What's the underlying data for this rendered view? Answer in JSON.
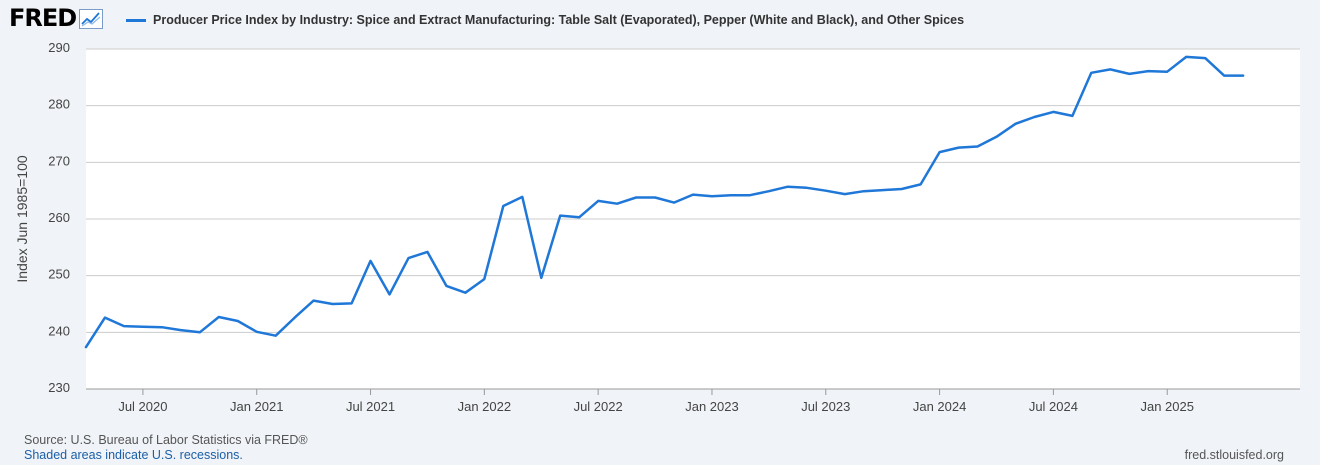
{
  "header": {
    "logo_text": "FRED",
    "series_title": "Producer Price Index by Industry: Spice and Extract Manufacturing: Table Salt (Evaporated), Pepper (White and Black), and Other Spices"
  },
  "footer": {
    "source": "Source: U.S. Bureau of Labor Statistics via FRED®",
    "recession_note": "Shaded areas indicate U.S. recessions.",
    "url": "fred.stlouisfed.org"
  },
  "colors": {
    "series": "#1f77d8",
    "plot_background": "#ffffff",
    "page_background": "#f0f3f7",
    "gridline": "#cccccc"
  },
  "chart_data": {
    "type": "line",
    "title": "Producer Price Index by Industry: Spice and Extract Manufacturing: Table Salt (Evaporated), Pepper (White and Black), and Other Spices",
    "xlabel": "",
    "ylabel": "Index Jun 1985=100",
    "ylim": [
      230,
      290
    ],
    "xlim": [
      "2020-04",
      "2025-08"
    ],
    "yticks": [
      230,
      240,
      250,
      260,
      270,
      280,
      290
    ],
    "xticks": [
      {
        "date": "2020-07",
        "label": "Jul 2020"
      },
      {
        "date": "2021-01",
        "label": "Jan 2021"
      },
      {
        "date": "2021-07",
        "label": "Jul 2021"
      },
      {
        "date": "2022-01",
        "label": "Jan 2022"
      },
      {
        "date": "2022-07",
        "label": "Jul 2022"
      },
      {
        "date": "2023-01",
        "label": "Jan 2023"
      },
      {
        "date": "2023-07",
        "label": "Jul 2023"
      },
      {
        "date": "2024-01",
        "label": "Jan 2024"
      },
      {
        "date": "2024-07",
        "label": "Jul 2024"
      },
      {
        "date": "2025-01",
        "label": "Jan 2025"
      }
    ],
    "grid": true,
    "legend": "top-left",
    "series": [
      {
        "name": "Producer Price Index by Industry: Spice and Extract Manufacturing: Table Salt (Evaporated), Pepper (White and Black), and Other Spices",
        "x": [
          "2020-04",
          "2020-05",
          "2020-06",
          "2020-07",
          "2020-08",
          "2020-09",
          "2020-10",
          "2020-11",
          "2020-12",
          "2021-01",
          "2021-02",
          "2021-03",
          "2021-04",
          "2021-05",
          "2021-06",
          "2021-07",
          "2021-08",
          "2021-09",
          "2021-10",
          "2021-11",
          "2021-12",
          "2022-01",
          "2022-02",
          "2022-03",
          "2022-04",
          "2022-05",
          "2022-06",
          "2022-07",
          "2022-08",
          "2022-09",
          "2022-10",
          "2022-11",
          "2022-12",
          "2023-01",
          "2023-02",
          "2023-03",
          "2023-04",
          "2023-05",
          "2023-06",
          "2023-07",
          "2023-08",
          "2023-09",
          "2023-10",
          "2023-11",
          "2023-12",
          "2024-01",
          "2024-02",
          "2024-03",
          "2024-04",
          "2024-05",
          "2024-06",
          "2024-07",
          "2024-08",
          "2024-09",
          "2024-10",
          "2024-11",
          "2024-12",
          "2025-01",
          "2025-02",
          "2025-03",
          "2025-04",
          "2025-05"
        ],
        "values": [
          237.4,
          242.6,
          241.1,
          241.0,
          240.9,
          240.4,
          240.0,
          242.7,
          242.0,
          240.1,
          239.4,
          242.6,
          245.6,
          245.0,
          245.1,
          252.6,
          246.7,
          253.1,
          254.2,
          248.2,
          247.0,
          249.4,
          262.3,
          263.9,
          249.6,
          260.6,
          260.3,
          263.2,
          262.7,
          263.8,
          263.8,
          262.9,
          264.3,
          264.0,
          264.2,
          264.2,
          264.9,
          265.7,
          265.5,
          265.0,
          264.4,
          264.9,
          265.1,
          265.3,
          266.1,
          271.8,
          272.6,
          272.8,
          274.5,
          276.8,
          278.0,
          278.9,
          278.2,
          285.8,
          286.4,
          285.6,
          286.1,
          286.0,
          288.6,
          288.4,
          285.3,
          285.3
        ]
      }
    ]
  }
}
